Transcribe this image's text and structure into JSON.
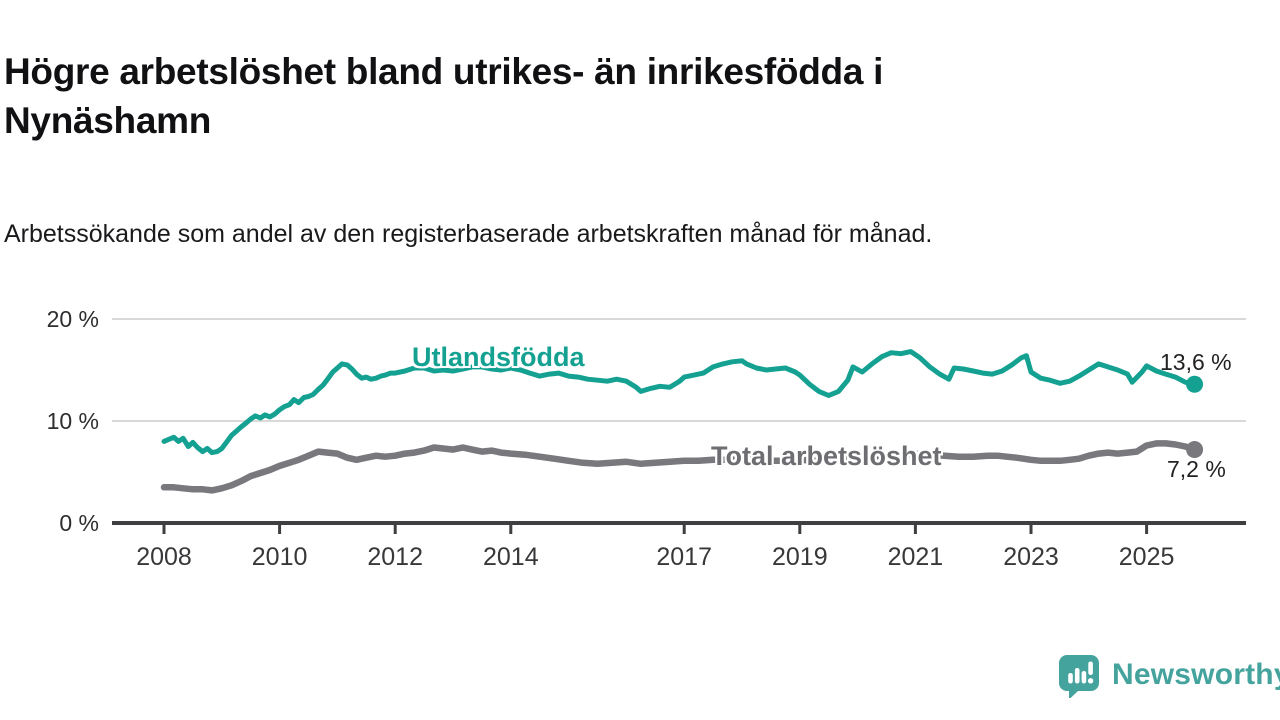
{
  "header": {
    "title": "Högre arbetslöshet bland utrikes- än inrikesfödda i Nynäshamn",
    "subtitle": "Arbetssökande som andel av den registerbaserade arbetskraften månad för månad."
  },
  "branding": {
    "name": "Newsworthy",
    "logo_icon": "speech-bubble-bar-chart-icon",
    "color": "#45a39e"
  },
  "chart_data": {
    "type": "line",
    "title": "Högre arbetslöshet bland utrikes- än inrikesfödda i Nynäshamn",
    "subtitle": "Arbetssökande som andel av den registerbaserade arbetskraften månad för månad.",
    "unit": "%",
    "grid": "horizontal",
    "legend_position": "inline-labels",
    "xlim": [
      2007.1,
      2026.7
    ],
    "ylim": [
      0,
      20
    ],
    "x_ticks": [
      {
        "value": 2008,
        "label": "2008"
      },
      {
        "value": 2010,
        "label": "2010"
      },
      {
        "value": 2012,
        "label": "2012"
      },
      {
        "value": 2014,
        "label": "2014"
      },
      {
        "value": 2017,
        "label": "2017"
      },
      {
        "value": 2019,
        "label": "2019"
      },
      {
        "value": 2021,
        "label": "2021"
      },
      {
        "value": 2023,
        "label": "2023"
      },
      {
        "value": 2025,
        "label": "2025"
      }
    ],
    "y_ticks": [
      {
        "value": 0,
        "label": "0 %"
      },
      {
        "value": 10,
        "label": "10 %"
      },
      {
        "value": 20,
        "label": "20 %"
      }
    ],
    "series": [
      {
        "name": "Utlandsfödda",
        "color": "#15a192",
        "end_value": 13.6,
        "end_label": "13,6 %",
        "points": [
          [
            2008.0,
            8.0
          ],
          [
            2008.08,
            8.2
          ],
          [
            2008.17,
            8.4
          ],
          [
            2008.25,
            8.0
          ],
          [
            2008.33,
            8.3
          ],
          [
            2008.42,
            7.5
          ],
          [
            2008.5,
            7.9
          ],
          [
            2008.58,
            7.4
          ],
          [
            2008.67,
            7.0
          ],
          [
            2008.75,
            7.3
          ],
          [
            2008.83,
            6.9
          ],
          [
            2008.92,
            7.0
          ],
          [
            2009.0,
            7.3
          ],
          [
            2009.08,
            7.9
          ],
          [
            2009.17,
            8.6
          ],
          [
            2009.25,
            9.0
          ],
          [
            2009.33,
            9.4
          ],
          [
            2009.42,
            9.8
          ],
          [
            2009.5,
            10.2
          ],
          [
            2009.58,
            10.5
          ],
          [
            2009.67,
            10.3
          ],
          [
            2009.75,
            10.6
          ],
          [
            2009.83,
            10.4
          ],
          [
            2009.92,
            10.7
          ],
          [
            2010.0,
            11.1
          ],
          [
            2010.08,
            11.4
          ],
          [
            2010.17,
            11.6
          ],
          [
            2010.25,
            12.1
          ],
          [
            2010.33,
            11.8
          ],
          [
            2010.42,
            12.3
          ],
          [
            2010.5,
            12.4
          ],
          [
            2010.58,
            12.6
          ],
          [
            2010.67,
            13.1
          ],
          [
            2010.75,
            13.5
          ],
          [
            2010.83,
            14.1
          ],
          [
            2010.92,
            14.8
          ],
          [
            2011.0,
            15.2
          ],
          [
            2011.08,
            15.6
          ],
          [
            2011.17,
            15.5
          ],
          [
            2011.25,
            15.1
          ],
          [
            2011.33,
            14.6
          ],
          [
            2011.42,
            14.2
          ],
          [
            2011.5,
            14.3
          ],
          [
            2011.58,
            14.1
          ],
          [
            2011.67,
            14.2
          ],
          [
            2011.75,
            14.4
          ],
          [
            2011.83,
            14.5
          ],
          [
            2011.92,
            14.7
          ],
          [
            2012.0,
            14.7
          ],
          [
            2012.17,
            14.9
          ],
          [
            2012.33,
            15.2
          ],
          [
            2012.5,
            15.2
          ],
          [
            2012.67,
            14.9
          ],
          [
            2012.83,
            15.0
          ],
          [
            2013.0,
            14.9
          ],
          [
            2013.17,
            15.1
          ],
          [
            2013.33,
            15.3
          ],
          [
            2013.5,
            15.3
          ],
          [
            2013.67,
            15.1
          ],
          [
            2013.83,
            15.0
          ],
          [
            2014.0,
            15.2
          ],
          [
            2014.17,
            15.0
          ],
          [
            2014.33,
            14.7
          ],
          [
            2014.5,
            14.4
          ],
          [
            2014.67,
            14.6
          ],
          [
            2014.83,
            14.7
          ],
          [
            2015.0,
            14.4
          ],
          [
            2015.17,
            14.3
          ],
          [
            2015.33,
            14.1
          ],
          [
            2015.5,
            14.0
          ],
          [
            2015.67,
            13.9
          ],
          [
            2015.83,
            14.1
          ],
          [
            2016.0,
            13.9
          ],
          [
            2016.17,
            13.3
          ],
          [
            2016.25,
            12.9
          ],
          [
            2016.42,
            13.2
          ],
          [
            2016.58,
            13.4
          ],
          [
            2016.75,
            13.3
          ],
          [
            2016.92,
            13.9
          ],
          [
            2017.0,
            14.3
          ],
          [
            2017.17,
            14.5
          ],
          [
            2017.33,
            14.7
          ],
          [
            2017.5,
            15.3
          ],
          [
            2017.67,
            15.6
          ],
          [
            2017.83,
            15.8
          ],
          [
            2018.0,
            15.9
          ],
          [
            2018.08,
            15.6
          ],
          [
            2018.25,
            15.2
          ],
          [
            2018.42,
            15.0
          ],
          [
            2018.58,
            15.1
          ],
          [
            2018.75,
            15.2
          ],
          [
            2018.92,
            14.8
          ],
          [
            2019.0,
            14.5
          ],
          [
            2019.17,
            13.6
          ],
          [
            2019.33,
            12.9
          ],
          [
            2019.5,
            12.5
          ],
          [
            2019.67,
            12.9
          ],
          [
            2019.83,
            14.0
          ],
          [
            2019.92,
            15.3
          ],
          [
            2020.08,
            14.8
          ],
          [
            2020.25,
            15.6
          ],
          [
            2020.42,
            16.3
          ],
          [
            2020.58,
            16.7
          ],
          [
            2020.75,
            16.6
          ],
          [
            2020.92,
            16.8
          ],
          [
            2021.08,
            16.2
          ],
          [
            2021.25,
            15.3
          ],
          [
            2021.42,
            14.6
          ],
          [
            2021.58,
            14.1
          ],
          [
            2021.67,
            15.2
          ],
          [
            2021.83,
            15.1
          ],
          [
            2022.0,
            14.9
          ],
          [
            2022.17,
            14.7
          ],
          [
            2022.33,
            14.6
          ],
          [
            2022.5,
            14.9
          ],
          [
            2022.67,
            15.5
          ],
          [
            2022.83,
            16.2
          ],
          [
            2022.92,
            16.4
          ],
          [
            2023.0,
            14.8
          ],
          [
            2023.17,
            14.2
          ],
          [
            2023.33,
            14.0
          ],
          [
            2023.5,
            13.7
          ],
          [
            2023.67,
            13.9
          ],
          [
            2023.83,
            14.4
          ],
          [
            2024.0,
            15.0
          ],
          [
            2024.17,
            15.6
          ],
          [
            2024.33,
            15.3
          ],
          [
            2024.5,
            15.0
          ],
          [
            2024.67,
            14.6
          ],
          [
            2024.75,
            13.8
          ],
          [
            2024.92,
            14.8
          ],
          [
            2025.0,
            15.4
          ],
          [
            2025.17,
            14.9
          ],
          [
            2025.33,
            14.6
          ],
          [
            2025.5,
            14.3
          ],
          [
            2025.67,
            13.8
          ],
          [
            2025.83,
            13.6
          ]
        ]
      },
      {
        "name": "Total arbetslöshet",
        "color": "#78787d",
        "end_value": 7.2,
        "end_label": "7,2 %",
        "points": [
          [
            2008.0,
            3.5
          ],
          [
            2008.17,
            3.5
          ],
          [
            2008.33,
            3.4
          ],
          [
            2008.5,
            3.3
          ],
          [
            2008.67,
            3.3
          ],
          [
            2008.83,
            3.2
          ],
          [
            2009.0,
            3.4
          ],
          [
            2009.17,
            3.7
          ],
          [
            2009.33,
            4.1
          ],
          [
            2009.5,
            4.6
          ],
          [
            2009.67,
            4.9
          ],
          [
            2009.83,
            5.2
          ],
          [
            2010.0,
            5.6
          ],
          [
            2010.17,
            5.9
          ],
          [
            2010.33,
            6.2
          ],
          [
            2010.5,
            6.6
          ],
          [
            2010.67,
            7.0
          ],
          [
            2010.83,
            6.9
          ],
          [
            2011.0,
            6.8
          ],
          [
            2011.17,
            6.4
          ],
          [
            2011.33,
            6.2
          ],
          [
            2011.5,
            6.4
          ],
          [
            2011.67,
            6.6
          ],
          [
            2011.83,
            6.5
          ],
          [
            2012.0,
            6.6
          ],
          [
            2012.17,
            6.8
          ],
          [
            2012.33,
            6.9
          ],
          [
            2012.5,
            7.1
          ],
          [
            2012.67,
            7.4
          ],
          [
            2012.83,
            7.3
          ],
          [
            2013.0,
            7.2
          ],
          [
            2013.17,
            7.4
          ],
          [
            2013.33,
            7.2
          ],
          [
            2013.5,
            7.0
          ],
          [
            2013.67,
            7.1
          ],
          [
            2013.83,
            6.9
          ],
          [
            2014.0,
            6.8
          ],
          [
            2014.25,
            6.7
          ],
          [
            2014.5,
            6.5
          ],
          [
            2014.75,
            6.3
          ],
          [
            2015.0,
            6.1
          ],
          [
            2015.25,
            5.9
          ],
          [
            2015.5,
            5.8
          ],
          [
            2015.75,
            5.9
          ],
          [
            2016.0,
            6.0
          ],
          [
            2016.25,
            5.8
          ],
          [
            2016.5,
            5.9
          ],
          [
            2016.75,
            6.0
          ],
          [
            2017.0,
            6.1
          ],
          [
            2017.25,
            6.1
          ],
          [
            2017.5,
            6.2
          ],
          [
            2017.75,
            6.2
          ],
          [
            2018.0,
            6.3
          ],
          [
            2018.25,
            6.2
          ],
          [
            2018.5,
            6.1
          ],
          [
            2018.75,
            6.1
          ],
          [
            2019.0,
            6.2
          ],
          [
            2019.25,
            6.1
          ],
          [
            2019.5,
            6.0
          ],
          [
            2019.75,
            6.2
          ],
          [
            2020.0,
            6.3
          ],
          [
            2020.25,
            6.5
          ],
          [
            2020.5,
            6.6
          ],
          [
            2020.75,
            6.7
          ],
          [
            2021.0,
            6.8
          ],
          [
            2021.25,
            6.7
          ],
          [
            2021.5,
            6.6
          ],
          [
            2021.75,
            6.5
          ],
          [
            2022.0,
            6.5
          ],
          [
            2022.25,
            6.6
          ],
          [
            2022.42,
            6.6
          ],
          [
            2022.58,
            6.5
          ],
          [
            2022.75,
            6.4
          ],
          [
            2023.0,
            6.2
          ],
          [
            2023.17,
            6.1
          ],
          [
            2023.33,
            6.1
          ],
          [
            2023.5,
            6.1
          ],
          [
            2023.67,
            6.2
          ],
          [
            2023.83,
            6.3
          ],
          [
            2024.0,
            6.6
          ],
          [
            2024.17,
            6.8
          ],
          [
            2024.33,
            6.9
          ],
          [
            2024.5,
            6.8
          ],
          [
            2024.67,
            6.9
          ],
          [
            2024.83,
            7.0
          ],
          [
            2025.0,
            7.6
          ],
          [
            2025.17,
            7.8
          ],
          [
            2025.33,
            7.8
          ],
          [
            2025.5,
            7.7
          ],
          [
            2025.67,
            7.5
          ],
          [
            2025.83,
            7.2
          ]
        ]
      }
    ]
  }
}
